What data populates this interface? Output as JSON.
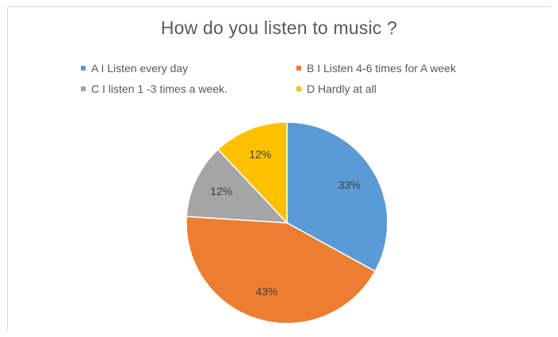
{
  "chart_data": {
    "type": "pie",
    "title": "How do you listen to music ?",
    "categories": [
      "A I Listen every day",
      "B I Listen 4-6 times for A week",
      "C I listen 1 -3 times a week.",
      "D Hardly at all"
    ],
    "values": [
      33,
      43,
      12,
      12
    ],
    "data_labels": [
      "33%",
      "43%",
      "12%",
      "12%"
    ],
    "colors": [
      "#5B9BD5",
      "#ED7D31",
      "#A5A5A5",
      "#FFC000"
    ],
    "legend_position": "top",
    "start_angle_deg": 0,
    "direction": "clockwise"
  }
}
